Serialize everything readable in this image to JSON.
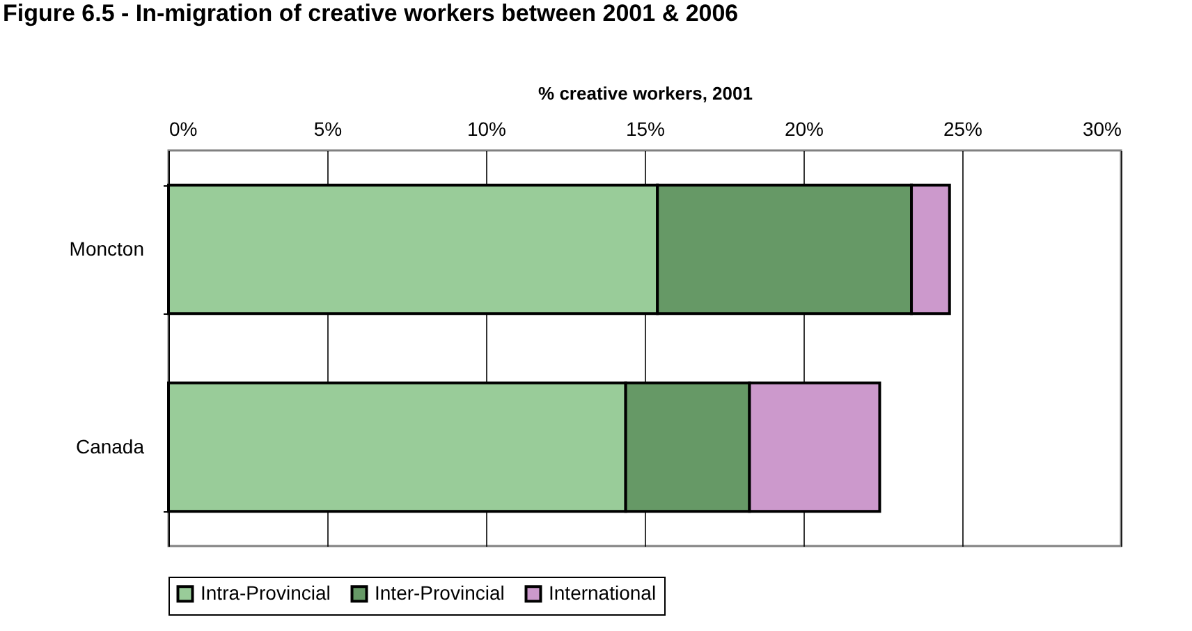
{
  "chart_data": {
    "type": "bar",
    "orientation": "horizontal",
    "stacked": true,
    "title": "Figure 6.5 - In-migration of creative workers between 2001 & 2006",
    "xlabel": "% creative workers, 2001",
    "categories": [
      "Moncton",
      "Canada"
    ],
    "series": [
      {
        "name": "Intra-Provincial",
        "color": "#99cc99",
        "values": [
          15.4,
          14.4
        ]
      },
      {
        "name": "Inter-Provincial",
        "color": "#669966",
        "values": [
          8.0,
          3.9
        ]
      },
      {
        "name": "International",
        "color": "#cc99cc",
        "values": [
          1.2,
          4.1
        ]
      }
    ],
    "xlim": [
      0,
      30
    ],
    "xticks": [
      {
        "value": 0,
        "label": "0%"
      },
      {
        "value": 5,
        "label": "5%"
      },
      {
        "value": 10,
        "label": "10%"
      },
      {
        "value": 15,
        "label": "15%"
      },
      {
        "value": 20,
        "label": "20%"
      },
      {
        "value": 25,
        "label": "25%"
      },
      {
        "value": 30,
        "label": "30%"
      }
    ],
    "grid": "x",
    "legend": "bottom"
  }
}
